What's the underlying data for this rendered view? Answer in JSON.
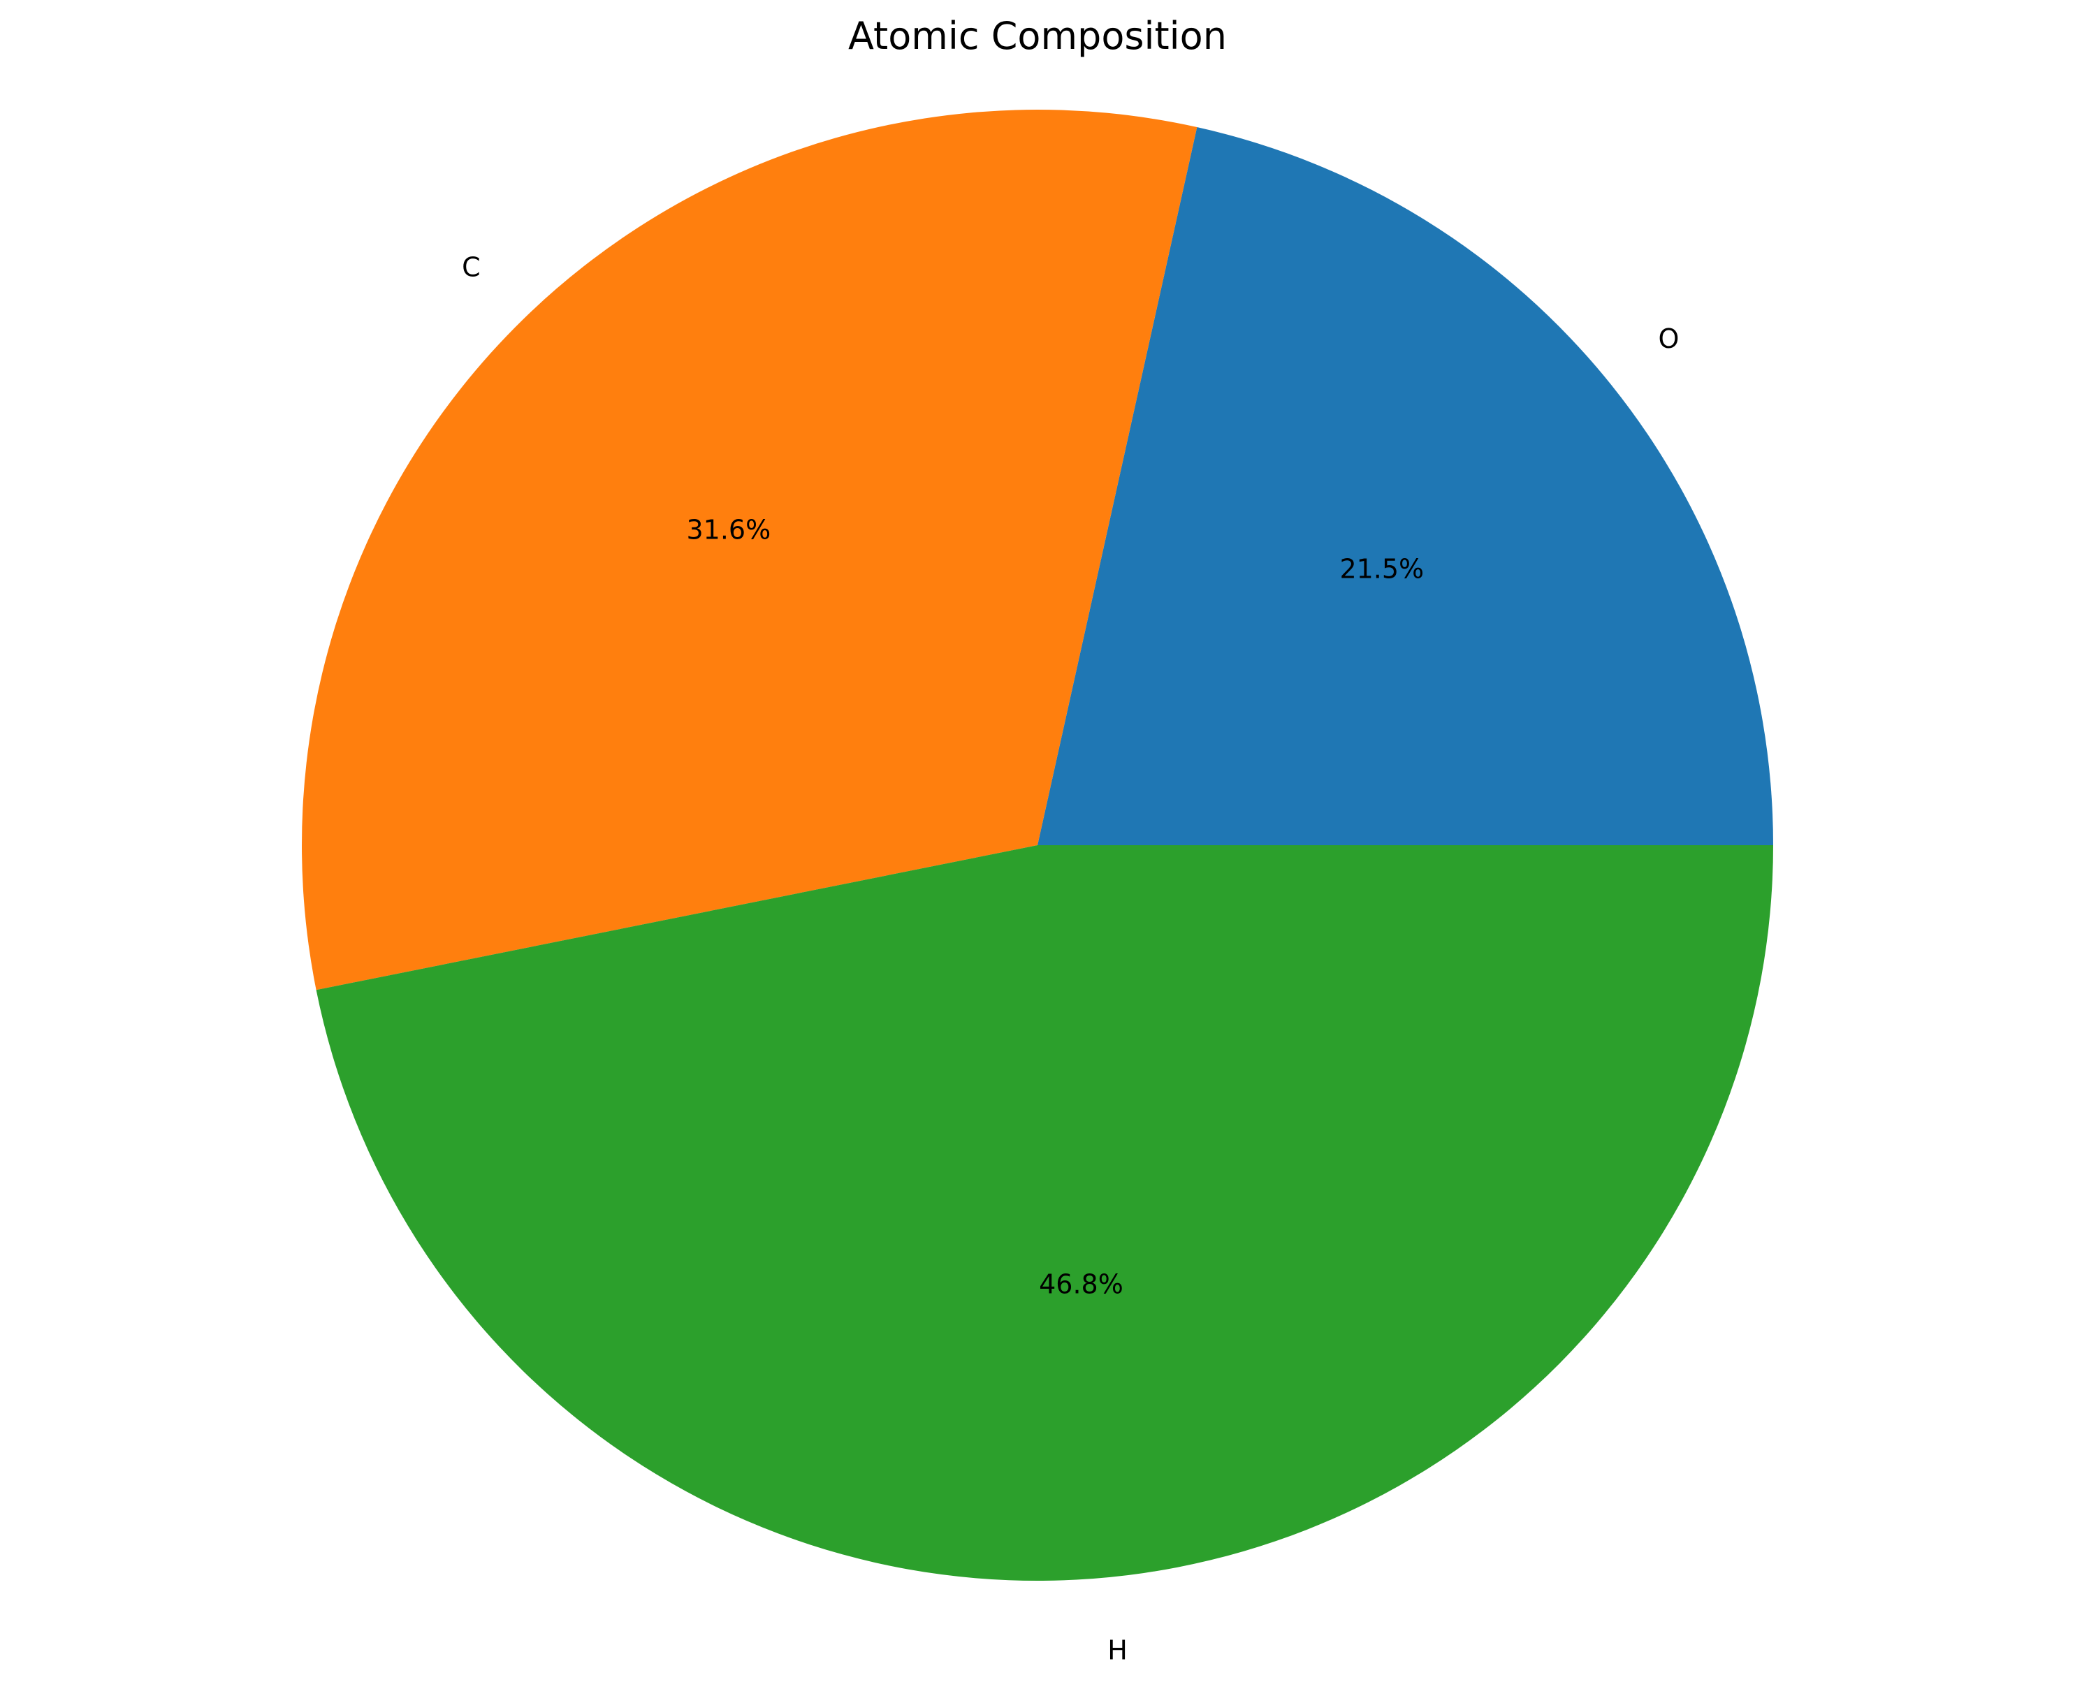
{
  "chart_data": {
    "type": "pie",
    "title": "Atomic Composition",
    "labels": [
      "O",
      "C",
      "H"
    ],
    "values": [
      21.5,
      31.6,
      46.8
    ],
    "value_labels": [
      "21.5%",
      "31.6%",
      "46.8%"
    ],
    "colors": [
      "#1f77b4",
      "#ff7f0e",
      "#2ca02c"
    ],
    "start_angle_deg": 0,
    "direction": "counterclockwise",
    "legend": "none"
  }
}
